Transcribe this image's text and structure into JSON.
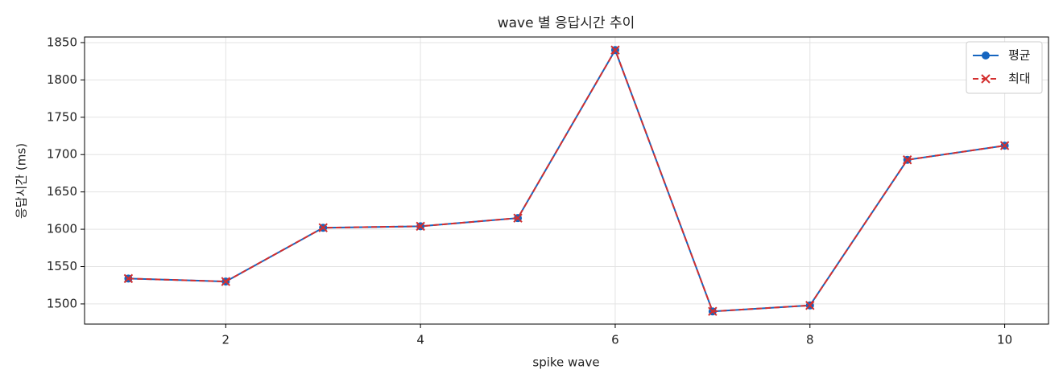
{
  "chart_data": {
    "type": "line",
    "title": "wave 별 응답시간 추이",
    "xlabel": "spike wave",
    "ylabel": "응답시간 (ms)",
    "x": [
      1,
      2,
      3,
      4,
      5,
      6,
      7,
      8,
      9,
      10
    ],
    "series": [
      {
        "name": "평균",
        "color": "#1565c0",
        "marker": "circle",
        "dashed": false,
        "values": [
          1534,
          1530,
          1602,
          1604,
          1615,
          1840,
          1490,
          1498,
          1693,
          1712
        ]
      },
      {
        "name": "최대",
        "color": "#d32f2f",
        "marker": "cross",
        "dashed": true,
        "values": [
          1534,
          1530,
          1602,
          1604,
          1615,
          1840,
          1490,
          1498,
          1693,
          1712
        ]
      }
    ],
    "xlim": [
      0.55,
      10.45
    ],
    "xticks": [
      2,
      4,
      6,
      8,
      10
    ],
    "ylim": [
      1473,
      1857.5
    ],
    "yticks": [
      1500,
      1550,
      1600,
      1650,
      1700,
      1750,
      1800,
      1850
    ],
    "grid": true,
    "legend": "upper right"
  }
}
